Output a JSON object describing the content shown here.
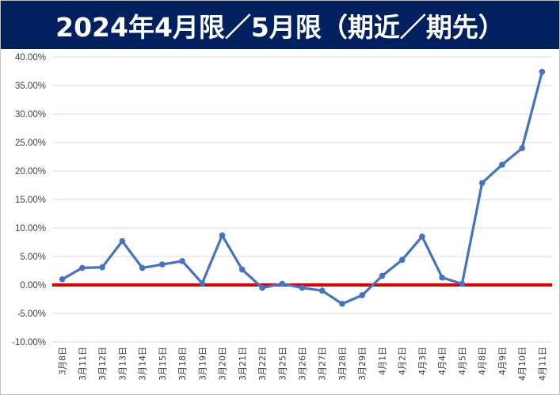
{
  "title": "2024年4月限／5月限（期近／期先）",
  "colors": {
    "title_bg": "#002060",
    "title_text": "#ffffff",
    "series": "#4472c4",
    "zero_line": "#e00000",
    "grid": "#d9d9d9"
  },
  "chart_data": {
    "type": "line",
    "title": "2024年4月限／5月限（期近／期先）",
    "xlabel": "",
    "ylabel": "",
    "ylim": [
      -0.1,
      0.4
    ],
    "yticks": [
      -0.1,
      -0.05,
      0.0,
      0.05,
      0.1,
      0.15,
      0.2,
      0.25,
      0.3,
      0.35,
      0.4
    ],
    "ytick_labels": [
      "-10.00%",
      "-5.00%",
      "0.00%",
      "5.00%",
      "10.00%",
      "15.00%",
      "20.00%",
      "25.00%",
      "30.00%",
      "35.00%",
      "40.00%"
    ],
    "grid": true,
    "legend": "none",
    "categories": [
      "3月8日",
      "3月11日",
      "3月12日",
      "3月13日",
      "3月14日",
      "3月15日",
      "3月18日",
      "3月19日",
      "3月20日",
      "3月21日",
      "3月22日",
      "3月25日",
      "3月26日",
      "3月27日",
      "3月28日",
      "3月29日",
      "4月1日",
      "4月2日",
      "4月3日",
      "4月4日",
      "4月5日",
      "4月8日",
      "4月9日",
      "4月10日",
      "4月11日"
    ],
    "series": [
      {
        "values": [
          0.01,
          0.03,
          0.031,
          0.077,
          0.03,
          0.036,
          0.042,
          0.003,
          0.087,
          0.027,
          -0.005,
          0.002,
          -0.005,
          -0.01,
          -0.033,
          -0.018,
          0.016,
          0.044,
          0.085,
          0.013,
          0.002,
          0.179,
          0.211,
          0.24,
          0.374
        ]
      }
    ],
    "reference_line": 0.0
  }
}
